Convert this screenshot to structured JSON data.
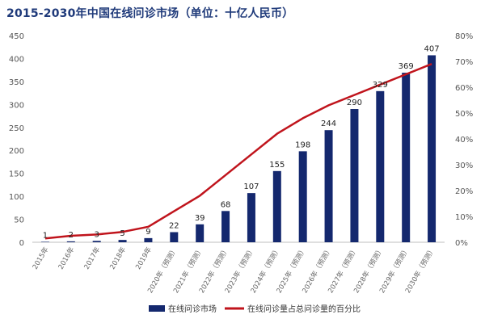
{
  "page": {
    "title": "2015-2030年中国在线问诊市场（单位：十亿人民币）"
  },
  "chart_data": {
    "type": "bar",
    "title": "2015-2030年中国在线问诊市场（单位：十亿人民币）",
    "categories": [
      "2015年",
      "2016年",
      "2017年",
      "2018年",
      "2019年",
      "2020年（预测）",
      "2021年（预测）",
      "2022年（预测）",
      "2023年（预测）",
      "2024年（预测）",
      "2025年（预测）",
      "2026年（预测）",
      "2027年（预测）",
      "2028年（预测）",
      "2029年（预测）",
      "2030年（预测）"
    ],
    "series": [
      {
        "name": "在线问诊市场",
        "type": "bar",
        "axis": "left",
        "color": "#14286e",
        "values": [
          1,
          2,
          3,
          5,
          9,
          22,
          39,
          68,
          107,
          155,
          198,
          244,
          290,
          329,
          369,
          407
        ],
        "labels": [
          "1",
          "2",
          "3",
          "5",
          "9",
          "22",
          "39",
          "68",
          "107",
          "155",
          "198",
          "244",
          "290",
          "329",
          "369",
          "407"
        ]
      },
      {
        "name": "在线问诊量占总问诊量的百分比",
        "type": "line",
        "axis": "right",
        "color": "#c0141c",
        "values": [
          1.5,
          2.5,
          3.0,
          4.0,
          6.0,
          12.0,
          18.0,
          26.0,
          34.0,
          42.0,
          48.0,
          53.0,
          57.0,
          61.0,
          65.0,
          69.0
        ]
      }
    ],
    "yleft": {
      "ylim": [
        0,
        450
      ],
      "ticks": [
        "0",
        "50",
        "100",
        "150",
        "200",
        "250",
        "300",
        "350",
        "400",
        "450"
      ]
    },
    "yright": {
      "ylim": [
        0,
        80
      ],
      "ticks": [
        "0%",
        "10%",
        "20%",
        "30%",
        "40%",
        "50%",
        "60%",
        "70%",
        "80%"
      ]
    },
    "grid": false,
    "legend": "bottom"
  }
}
